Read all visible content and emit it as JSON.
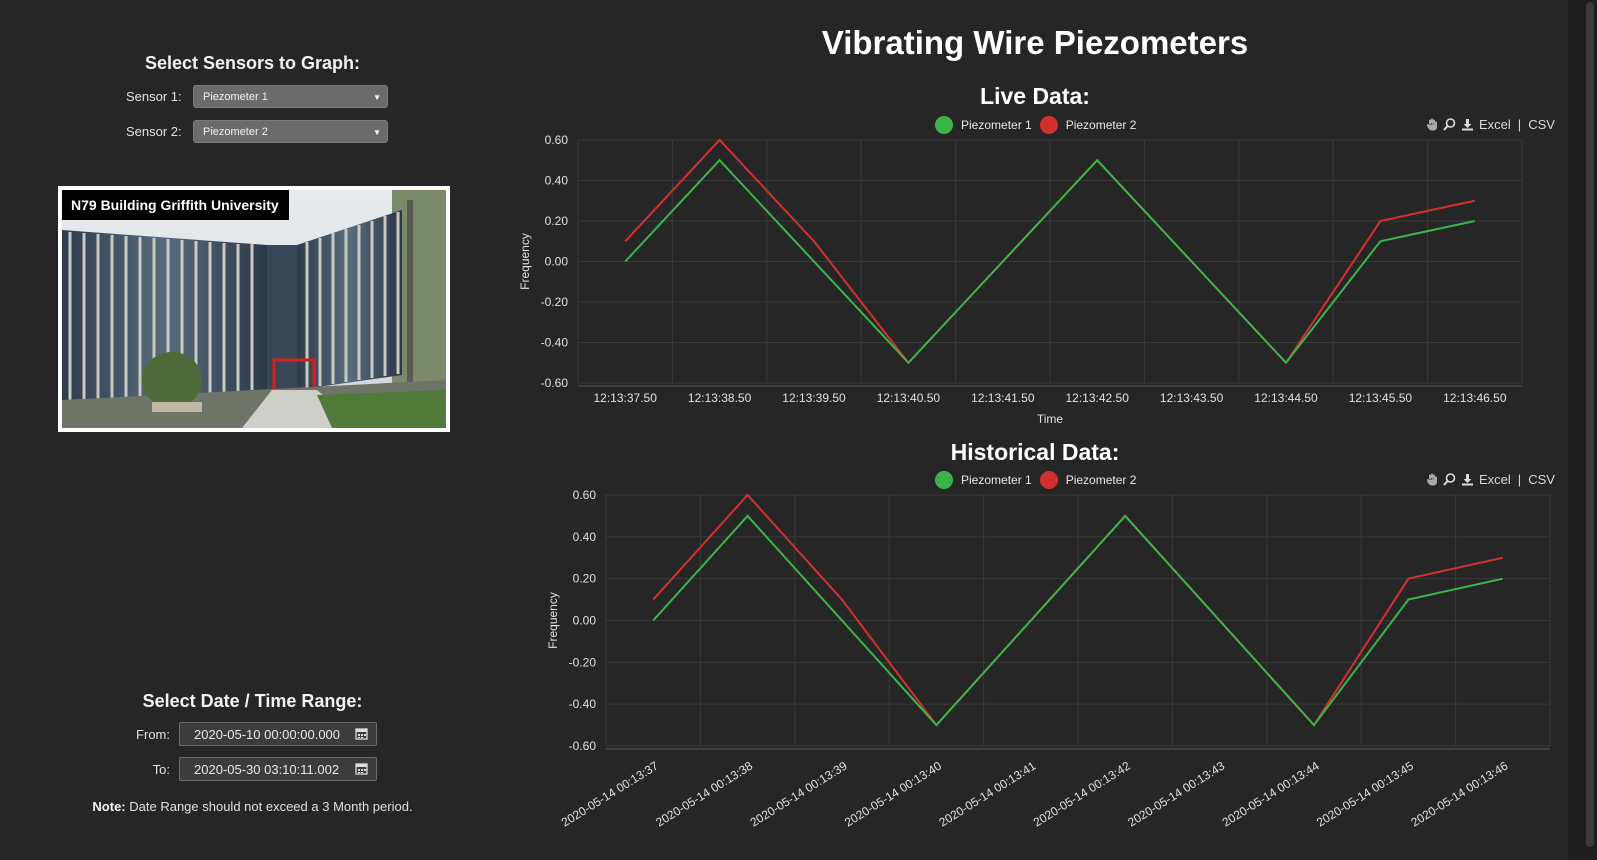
{
  "page_title": "Vibrating Wire Piezometers",
  "sidebar": {
    "sensor_title": "Select Sensors to Graph:",
    "sensor1_label": "Sensor 1:",
    "sensor1_value": "Piezometer 1",
    "sensor2_label": "Sensor 2:",
    "sensor2_value": "Piezometer 2",
    "photo_caption": "N79 Building Griffith University",
    "date_title": "Select Date / Time Range:",
    "from_label": "From:",
    "from_value": "2020-05-10 00:00:00.000",
    "to_label": "To:",
    "to_value": "2020-05-30 03:10:11.002",
    "note_bold": "Note:",
    "note_text": " Date Range should not exceed a 3 Month period."
  },
  "toolbar": {
    "excel": "Excel",
    "sep": "|",
    "csv": "CSV"
  },
  "colors": {
    "series1": "#3bb54a",
    "series2": "#d32f2f",
    "background": "#262626"
  },
  "chart_data": [
    {
      "type": "line",
      "title": "Live Data:",
      "xlabel": "Time",
      "ylabel": "Frequency",
      "ylim": [
        -0.6,
        0.6
      ],
      "yticks": [
        "0.60",
        "0.40",
        "0.20",
        "0.00",
        "-0.20",
        "-0.40",
        "-0.60"
      ],
      "x": [
        "12:13:37.50",
        "12:13:38.50",
        "12:13:39.50",
        "12:13:40.50",
        "12:13:41.50",
        "12:13:42.50",
        "12:13:43.50",
        "12:13:44.50",
        "12:13:45.50",
        "12:13:46.50"
      ],
      "series": [
        {
          "name": "Piezometer 1",
          "color": "#3bb54a",
          "values": [
            0.0,
            0.5,
            0.0,
            -0.5,
            0.0,
            0.5,
            0.0,
            -0.5,
            0.1,
            0.2
          ]
        },
        {
          "name": "Piezometer 2",
          "color": "#d32f2f",
          "values": [
            0.1,
            0.6,
            0.1,
            -0.5,
            0.0,
            0.5,
            0.0,
            -0.5,
            0.2,
            0.3
          ]
        }
      ]
    },
    {
      "type": "line",
      "title": "Historical Data:",
      "xlabel": "",
      "ylabel": "Frequency",
      "ylim": [
        -0.6,
        0.6
      ],
      "yticks": [
        "0.60",
        "0.40",
        "0.20",
        "0.00",
        "-0.20",
        "-0.40",
        "-0.60"
      ],
      "x": [
        "2020-05-14 00:13:37",
        "2020-05-14 00:13:38",
        "2020-05-14 00:13:39",
        "2020-05-14 00:13:40",
        "2020-05-14 00:13:41",
        "2020-05-14 00:13:42",
        "2020-05-14 00:13:43",
        "2020-05-14 00:13:44",
        "2020-05-14 00:13:45",
        "2020-05-14 00:13:46"
      ],
      "series": [
        {
          "name": "Piezometer 1",
          "color": "#3bb54a",
          "values": [
            0.0,
            0.5,
            0.0,
            -0.5,
            0.0,
            0.5,
            0.0,
            -0.5,
            0.1,
            0.2
          ]
        },
        {
          "name": "Piezometer 2",
          "color": "#d32f2f",
          "values": [
            0.1,
            0.6,
            0.1,
            -0.5,
            0.0,
            0.5,
            0.0,
            -0.5,
            0.2,
            0.3
          ]
        }
      ]
    }
  ]
}
